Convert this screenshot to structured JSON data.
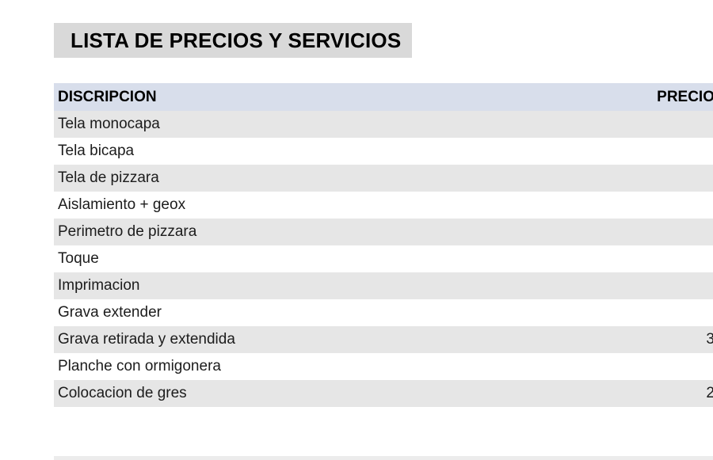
{
  "title": "LISTA DE PRECIOS Y SERVICIOS",
  "table": {
    "columns": {
      "description": "DISCRIPCION",
      "price": "PRECIO"
    },
    "rows": [
      {
        "description": "Tela monocapa",
        "price": ""
      },
      {
        "description": "Tela bicapa",
        "price": ""
      },
      {
        "description": "Tela de pizzara",
        "price": ""
      },
      {
        "description": "Aislamiento + geox",
        "price": ""
      },
      {
        "description": "Perimetro de pizzara",
        "price": ""
      },
      {
        "description": "Toque",
        "price": ""
      },
      {
        "description": "Imprimacion",
        "price": ""
      },
      {
        "description": "Grava extender",
        "price": ""
      },
      {
        "description": "Grava retirada y extendida",
        "price": "3"
      },
      {
        "description": "Planche con ormigonera",
        "price": ""
      },
      {
        "description": "Colocacion de gres",
        "price": "2"
      },
      {
        "description": "",
        "price": ""
      }
    ]
  },
  "colors": {
    "title_bg": "#d9d9d9",
    "header_bg": "#d8deeb",
    "row_alt": "#e6e6e6",
    "row_alt_faint": "#ececec",
    "text": "#1c1c1c"
  }
}
